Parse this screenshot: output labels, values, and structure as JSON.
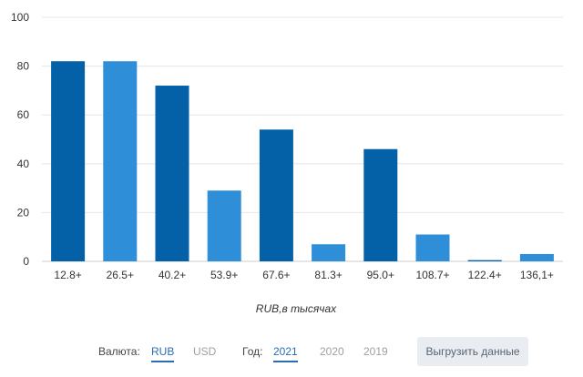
{
  "chart_data": {
    "type": "bar",
    "categories": [
      "12.8+",
      "26.5+",
      "40.2+",
      "53.9+",
      "67.6+",
      "81.3+",
      "95.0+",
      "108.7+",
      "122.4+",
      "136,1+"
    ],
    "values": [
      82,
      82,
      72,
      29,
      54,
      7,
      46,
      11,
      0.5,
      3
    ],
    "bar_colors": [
      "#0461a8",
      "#2e8fd8",
      "#0461a8",
      "#2e8fd8",
      "#0461a8",
      "#2e8fd8",
      "#0461a8",
      "#2e8fd8",
      "#0461a8",
      "#2e8fd8"
    ],
    "ylim": [
      0,
      100
    ],
    "yticks": [
      "0",
      "20",
      "40",
      "60",
      "80",
      "100"
    ],
    "xlabel": "RUB,в тысячах",
    "grid": true
  },
  "controls": {
    "currency_label": "Валюта:",
    "currency_options": [
      {
        "label": "RUB",
        "active": true
      },
      {
        "label": "USD",
        "active": false
      }
    ],
    "year_label": "Год:",
    "year_options": [
      {
        "label": "2021",
        "active": true
      },
      {
        "label": "2020",
        "active": false
      },
      {
        "label": "2019",
        "active": false
      }
    ],
    "export_label": "Выгрузить данные"
  },
  "colors": {
    "active": "#2a6db5",
    "inactive": "#a0a0a0",
    "grid": "#e6e6e6"
  }
}
